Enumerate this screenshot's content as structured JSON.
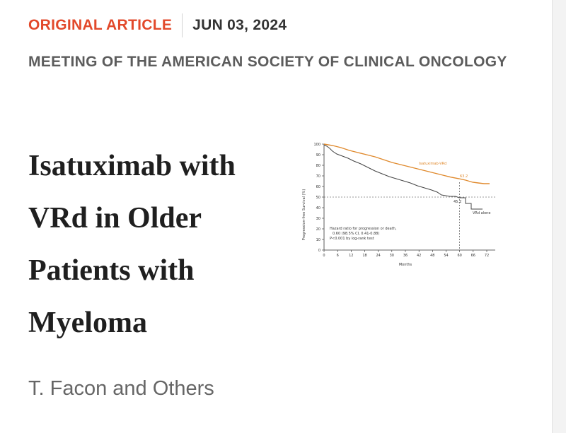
{
  "card": {
    "article_type": "ORIGINAL ARTICLE",
    "date": "JUN 03, 2024",
    "section": "MEETING OF THE AMERICAN SOCIETY OF CLINICAL ONCOLOGY",
    "title": "Isatuximab with VRd in Older Patients with Myeloma",
    "authors": "T. Facon and Others"
  },
  "colors": {
    "article_type": "#e2492b",
    "isa_vrd_curve": "#e08a2e",
    "vrd_curve": "#444444"
  },
  "thumbnail": {
    "ylabel": "Progression-free Survival (%)",
    "xlabel": "Months",
    "y_ticks": [
      "0",
      "10",
      "20",
      "30",
      "40",
      "50",
      "60",
      "70",
      "80",
      "90",
      "100"
    ],
    "x_ticks": [
      "0",
      "6",
      "12",
      "18",
      "24",
      "30",
      "36",
      "42",
      "48",
      "54",
      "60",
      "66",
      "72"
    ],
    "series_labels": {
      "isa": "Isatuximab-VRd",
      "vrd": "VRd alone"
    },
    "values": {
      "isa": "63.2",
      "vrd": "45.2"
    },
    "hazard_text": [
      "Hazard ratio for progression or death,",
      "0.60 (98.5% CI, 0.41-0.88)",
      "P<0.001 by log-rank test"
    ]
  }
}
